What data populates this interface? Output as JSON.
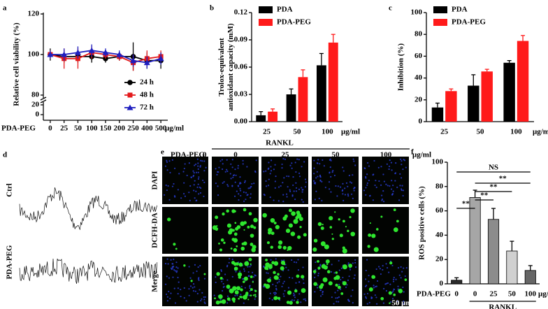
{
  "panel_labels": [
    "a",
    "b",
    "c",
    "d",
    "e",
    "f"
  ],
  "chart_data": [
    {
      "type": "line",
      "ylabel": "Relative cell viability (%)",
      "x_prefix": "PDA-PEG",
      "x_unit": "μg/ml",
      "categories": [
        "0",
        "25",
        "50",
        "100",
        "150",
        "200",
        "250",
        "400",
        "500"
      ],
      "ylim": [
        0,
        120
      ],
      "ybreak": [
        20,
        80
      ],
      "yticks": [
        0,
        20,
        80,
        100,
        120
      ],
      "legend": "right",
      "series": [
        {
          "name": "24 h",
          "color": "#000000",
          "marker": "circle",
          "values": [
            100,
            99,
            99,
            99,
            98,
            99,
            99,
            97,
            97
          ],
          "errors": [
            3,
            3,
            3,
            3,
            2,
            2,
            7,
            4,
            4
          ]
        },
        {
          "name": "48 h",
          "color": "#e41a1c",
          "marker": "square",
          "values": [
            100,
            98,
            98,
            101,
            100,
            99,
            96,
            98,
            99
          ],
          "errors": [
            2,
            5,
            5,
            3,
            2,
            2,
            4,
            4,
            3
          ]
        },
        {
          "name": "72 h",
          "color": "#1f1fbf",
          "marker": "triangle",
          "values": [
            100,
            100,
            101,
            102,
            101,
            100,
            97,
            96,
            98
          ],
          "errors": [
            2,
            3,
            3,
            3,
            2,
            2,
            3,
            3,
            3
          ]
        }
      ]
    },
    {
      "type": "bar",
      "ylabel": [
        "Trolox-equivalent",
        "antioxidant capacity (mM)"
      ],
      "x_unit": "μg/ml",
      "categories": [
        "25",
        "50",
        "100"
      ],
      "ylim": [
        0,
        0.12
      ],
      "yticks": [
        {
          "value": 0,
          "label": "0.00"
        },
        0.03,
        0.06,
        0.09,
        0.12
      ],
      "legend": "upper left",
      "series": [
        {
          "name": "PDA",
          "color": "#000000",
          "values": [
            0.007,
            0.03,
            0.062
          ],
          "errors": [
            0.004,
            0.006,
            0.013
          ]
        },
        {
          "name": "PDA-PEG",
          "color": "#ff1a1a",
          "values": [
            0.011,
            0.049,
            0.087
          ],
          "errors": [
            0.003,
            0.008,
            0.009
          ]
        }
      ]
    },
    {
      "type": "bar",
      "ylabel": [
        "Inhibition (%)"
      ],
      "x_unit": "μg/ml",
      "categories": [
        "25",
        "50",
        "100"
      ],
      "ylim": [
        0,
        100
      ],
      "yticks": [
        0,
        20,
        40,
        60,
        80,
        100
      ],
      "legend": "upper left",
      "series": [
        {
          "name": "PDA",
          "color": "#000000",
          "values": [
            13,
            33,
            54
          ],
          "errors": [
            4,
            10,
            2
          ]
        },
        {
          "name": "PDA-PEG",
          "color": "#ff1a1a",
          "values": [
            28,
            46,
            74
          ],
          "errors": [
            2,
            2,
            5
          ]
        }
      ]
    },
    {
      "type": "bar",
      "ylabel": [
        "ROS positive cells (%)"
      ],
      "x_prefix": "PDA-PEG",
      "x_unit": "μg/ml",
      "group_label": "RANKL",
      "categories": [
        "0",
        "0",
        "25",
        "50",
        "100"
      ],
      "ylim": [
        0,
        100
      ],
      "yticks": [
        0,
        20,
        40,
        60,
        80,
        100
      ],
      "values": [
        3,
        71,
        53,
        27,
        11
      ],
      "errors": [
        2,
        6,
        9,
        8,
        4
      ],
      "colors": [
        "#2b2b2b",
        "#a6a6a6",
        "#8c8c8c",
        "#d0d0d0",
        "#666666"
      ],
      "annotations": [
        "NS",
        "**",
        "**",
        "**",
        "**"
      ]
    }
  ],
  "spectra": {
    "labels": [
      "Ctrl",
      "PDA-PEG"
    ]
  },
  "imaging": {
    "prefix": "PDA-PEG",
    "control": "0",
    "group_label": "RANKL",
    "columns": [
      "0",
      "25",
      "50",
      "100"
    ],
    "unit": "μg/ml",
    "rows": [
      "DAPI",
      "DCFH-DA",
      "Merge"
    ],
    "scale_bar": "50 μm"
  }
}
